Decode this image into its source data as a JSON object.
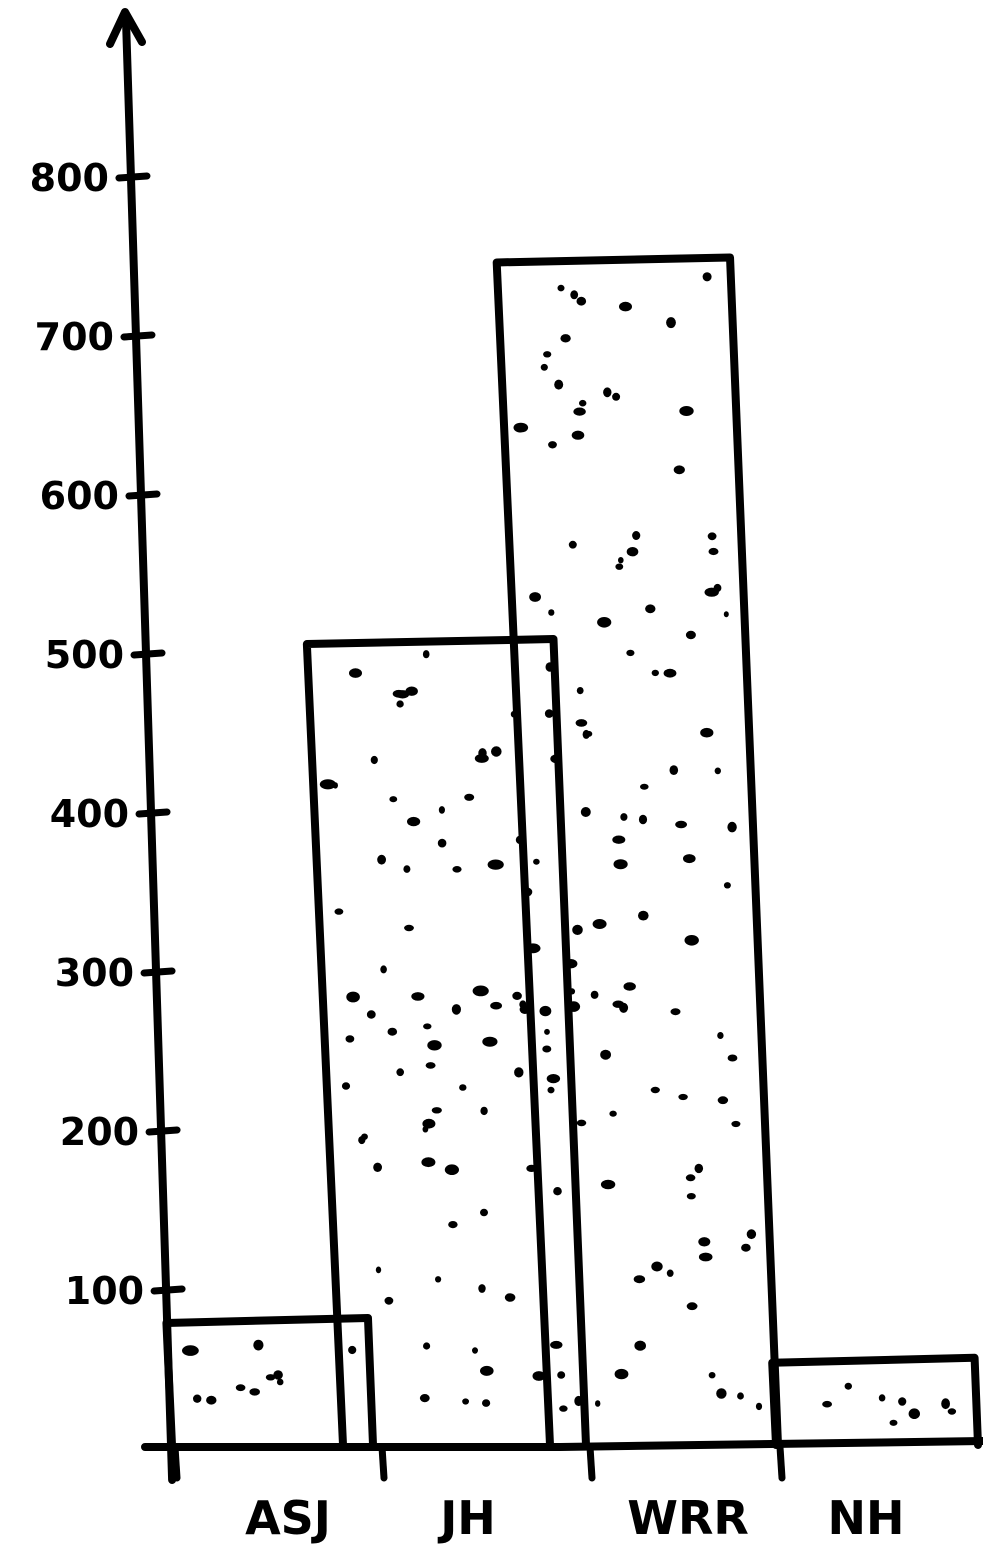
{
  "chart_data": {
    "type": "bar",
    "title": "",
    "xlabel": "",
    "ylabel": "",
    "categories": [
      "ASJ",
      "JH",
      "WRR",
      "NH"
    ],
    "values": [
      78,
      505,
      745,
      53
    ],
    "ylim": [
      0,
      850
    ],
    "yticks": [
      100,
      200,
      300,
      400,
      500,
      600,
      700,
      800
    ],
    "ytick_labels": [
      "100",
      "200",
      "300",
      "400",
      "500",
      "600",
      "700",
      "800"
    ],
    "grid": false,
    "legend": "none",
    "colors": {
      "ink": "#000000",
      "background": "#ffffff"
    },
    "style": "hand-drawn, stippled bars"
  }
}
